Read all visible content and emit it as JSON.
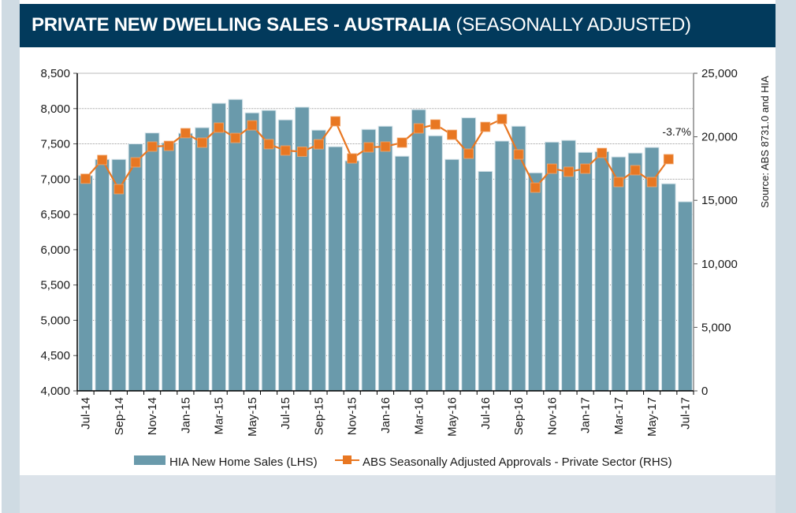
{
  "header": {
    "title_bold": "PRIVATE NEW DWELLING SALES -  AUSTRALIA",
    "title_sub": " (SEASONALLY ADJUSTED)"
  },
  "colors": {
    "header_bg": "#023a5c",
    "bar": "#6a9aab",
    "line": "#e87722"
  },
  "chart_data": {
    "type": "bar+line",
    "title": "PRIVATE NEW DWELLING SALES - AUSTRALIA (SEASONALLY ADJUSTED)",
    "source": "Source: ABS 8731.0 and HIA",
    "annotation": "-3.7%",
    "categories": [
      "Jul-14",
      "Aug-14",
      "Sep-14",
      "Oct-14",
      "Nov-14",
      "Dec-14",
      "Jan-15",
      "Feb-15",
      "Mar-15",
      "Apr-15",
      "May-15",
      "Jun-15",
      "Jul-15",
      "Aug-15",
      "Sep-15",
      "Oct-15",
      "Nov-15",
      "Dec-15",
      "Jan-16",
      "Feb-16",
      "Mar-16",
      "Apr-16",
      "May-16",
      "Jun-16",
      "Jul-16",
      "Aug-16",
      "Sep-16",
      "Oct-16",
      "Nov-16",
      "Dec-16",
      "Jan-17",
      "Feb-17",
      "Mar-17",
      "Apr-17",
      "May-17",
      "Jun-17",
      "Jul-17"
    ],
    "tick_labels": [
      "Jul-14",
      "Sep-14",
      "Nov-14",
      "Jan-15",
      "Mar-15",
      "May-15",
      "Jul-15",
      "Sep-15",
      "Nov-15",
      "Jan-16",
      "Mar-16",
      "May-16",
      "Jul-16",
      "Sep-16",
      "Nov-16",
      "Jan-17",
      "Mar-17",
      "May-17",
      "Jul-17"
    ],
    "left_axis": {
      "label": "",
      "range": [
        4000,
        8500
      ],
      "ticks": [
        "4,000",
        "4,500",
        "5,000",
        "5,500",
        "6,000",
        "6,500",
        "7,000",
        "7,500",
        "8,000",
        "8,500"
      ]
    },
    "right_axis": {
      "label": "",
      "range": [
        0,
        25000
      ],
      "ticks": [
        "0",
        "5,000",
        "10,000",
        "15,000",
        "20,000",
        "25,000"
      ]
    },
    "series": [
      {
        "name": "HIA New Home Sales (LHS)",
        "type": "bar",
        "axis": "left",
        "values": [
          7050,
          7280,
          7280,
          7500,
          7655,
          7515,
          7650,
          7730,
          8075,
          8130,
          7940,
          7975,
          7840,
          8020,
          7695,
          7460,
          7260,
          7705,
          7750,
          7325,
          7985,
          7615,
          7280,
          7870,
          7110,
          7540,
          7750,
          7090,
          7525,
          7550,
          7380,
          7390,
          7315,
          7370,
          7450,
          6935,
          6680
        ]
      },
      {
        "name": "ABS Seasonally Adjusted Approvals - Private Sector (RHS)",
        "type": "line",
        "axis": "right",
        "values": [
          16700,
          18180,
          15880,
          17990,
          19230,
          19290,
          20290,
          19540,
          20720,
          19910,
          20900,
          19420,
          18920,
          18830,
          19410,
          21220,
          18300,
          19170,
          19230,
          19540,
          20660,
          20970,
          20160,
          18670,
          20780,
          21400,
          18610,
          16000,
          17490,
          17250,
          17490,
          18730,
          16440,
          17370,
          16440,
          18240,
          null
        ]
      }
    ],
    "grid": true,
    "legend_position": "bottom"
  }
}
